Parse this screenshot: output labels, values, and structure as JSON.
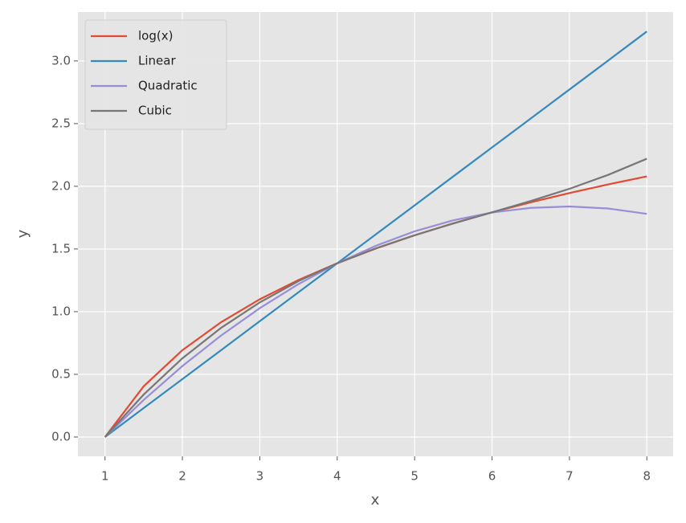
{
  "chart_data": {
    "type": "line",
    "x": [
      1,
      1.5,
      2,
      2.5,
      3,
      3.5,
      4,
      4.5,
      5,
      5.5,
      6,
      6.5,
      7,
      7.5,
      8
    ],
    "series": [
      {
        "name": "log(x)",
        "color": "#E24A33",
        "values": [
          0,
          0.405,
          0.693,
          0.916,
          1.099,
          1.253,
          1.386,
          1.504,
          1.609,
          1.705,
          1.792,
          1.872,
          1.946,
          2.015,
          2.079
        ]
      },
      {
        "name": "Linear",
        "color": "#348ABD",
        "values": [
          0,
          0.231,
          0.462,
          0.693,
          0.924,
          1.155,
          1.386,
          1.617,
          1.848,
          2.079,
          2.31,
          2.541,
          2.772,
          3.003,
          3.235
        ]
      },
      {
        "name": "Quadratic",
        "color": "#988ED5",
        "values": [
          0,
          0.296,
          0.566,
          0.81,
          1.028,
          1.22,
          1.386,
          1.526,
          1.641,
          1.729,
          1.791,
          1.828,
          1.839,
          1.823,
          1.78
        ]
      },
      {
        "name": "Cubic",
        "color": "#777777",
        "values": [
          0,
          0.339,
          0.628,
          0.871,
          1.074,
          1.244,
          1.386,
          1.506,
          1.61,
          1.703,
          1.792,
          1.883,
          1.98,
          2.091,
          2.22
        ]
      }
    ],
    "x_label": "x",
    "y_label": "y",
    "xlim": [
      0.65,
      8.34
    ],
    "ylim": [
      -0.154,
      3.39
    ],
    "xticks": [
      1,
      2,
      3,
      4,
      5,
      6,
      7,
      8
    ],
    "yticks": [
      {
        "value": 0,
        "label": "0.0"
      },
      0.5,
      {
        "value": 1,
        "label": "1.0"
      },
      1.5,
      {
        "value": 2,
        "label": "2.0"
      },
      2.5,
      {
        "value": 3,
        "label": "3.0"
      }
    ],
    "grid": true,
    "legend": "upper left"
  }
}
